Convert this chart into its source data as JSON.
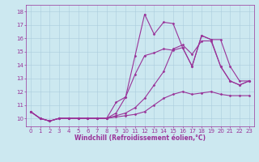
{
  "background_color": "#cce8f0",
  "grid_color": "#aaccdd",
  "line_color": "#993399",
  "marker_style": "D",
  "marker_size": 1.5,
  "line_width": 0.8,
  "xlabel": "Windchill (Refroidissement éolien,°C)",
  "xlabel_fontsize": 5.5,
  "tick_fontsize": 5,
  "xlim": [
    -0.5,
    23.5
  ],
  "ylim": [
    9.4,
    18.5
  ],
  "yticks": [
    10,
    11,
    12,
    13,
    14,
    15,
    16,
    17,
    18
  ],
  "xticks": [
    0,
    1,
    2,
    3,
    4,
    5,
    6,
    7,
    8,
    9,
    10,
    11,
    12,
    13,
    14,
    15,
    16,
    17,
    18,
    19,
    20,
    21,
    22,
    23
  ],
  "series": [
    [
      10.5,
      10.0,
      9.8,
      10.0,
      10.0,
      10.0,
      10.0,
      10.0,
      10.0,
      10.1,
      10.2,
      10.3,
      10.5,
      11.0,
      11.5,
      11.8,
      12.0,
      11.8,
      11.9,
      12.0,
      11.8,
      11.7,
      11.7,
      11.7
    ],
    [
      10.5,
      10.0,
      9.8,
      10.0,
      10.0,
      10.0,
      10.0,
      10.0,
      10.0,
      10.2,
      10.4,
      10.8,
      11.5,
      12.5,
      13.5,
      15.2,
      15.5,
      14.8,
      15.8,
      15.8,
      13.9,
      12.8,
      12.5,
      12.8
    ],
    [
      10.5,
      10.0,
      9.8,
      10.0,
      10.0,
      10.0,
      10.0,
      10.0,
      10.0,
      11.2,
      11.6,
      14.7,
      17.8,
      16.3,
      17.2,
      17.1,
      15.3,
      13.9,
      16.2,
      15.9,
      13.9,
      12.8,
      12.5,
      12.8
    ],
    [
      10.5,
      10.0,
      9.8,
      10.0,
      10.0,
      10.0,
      10.0,
      10.0,
      10.0,
      10.4,
      11.6,
      13.3,
      14.7,
      14.9,
      15.2,
      15.1,
      15.3,
      13.9,
      16.2,
      15.9,
      15.9,
      13.9,
      12.8,
      12.8
    ]
  ]
}
